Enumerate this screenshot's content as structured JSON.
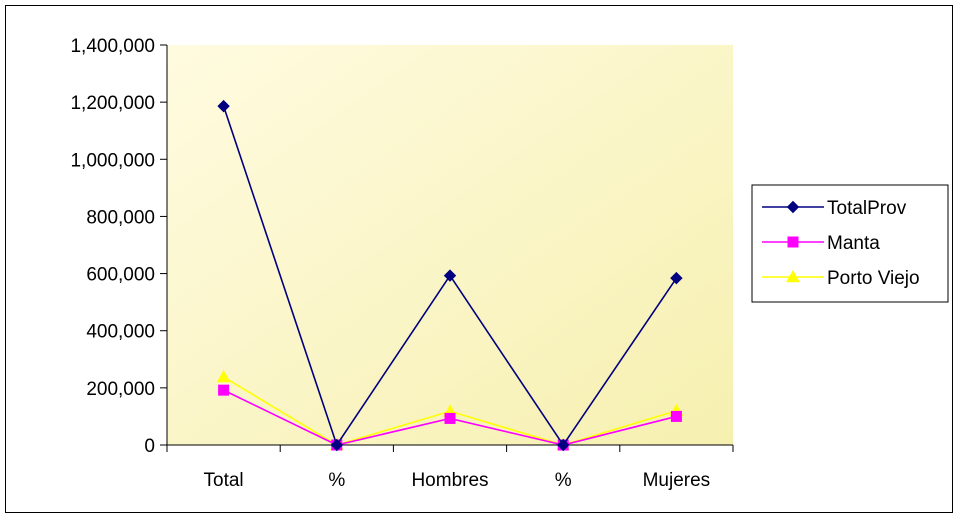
{
  "chart_data": {
    "type": "line",
    "categories": [
      "Total",
      "%",
      "Hombres",
      "%",
      "Mujeres"
    ],
    "y_ticks": [
      "0",
      "200,000",
      "400,000",
      "600,000",
      "800,000",
      "1,000,000",
      "1,200,000",
      "1,400,000"
    ],
    "ylim": [
      0,
      1400000
    ],
    "grid": false,
    "legend_position": "right",
    "series": [
      {
        "name": "TotalProv",
        "values": [
          1186000,
          0,
          593000,
          0,
          584000
        ],
        "color": "#000080",
        "marker": "diamond"
      },
      {
        "name": "Manta",
        "values": [
          192000,
          0,
          93000,
          0,
          100000
        ],
        "color": "#ff00ff",
        "marker": "square"
      },
      {
        "name": "Porto Viejo",
        "values": [
          238000,
          0,
          118000,
          0,
          120000
        ],
        "color": "#ffff00",
        "marker": "triangle"
      }
    ],
    "plot_background": [
      "#fffbe0",
      "#f6f0b0"
    ]
  }
}
